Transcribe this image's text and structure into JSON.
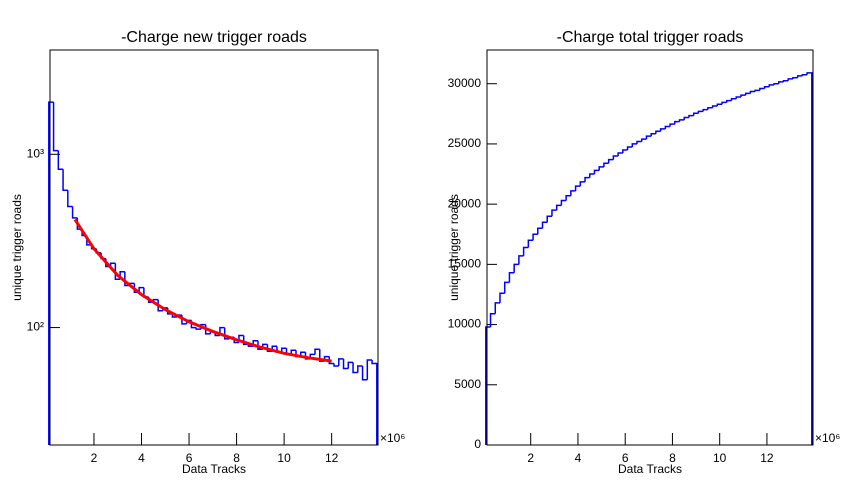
{
  "chart_data": [
    {
      "type": "histogram",
      "title": "-Charge new trigger roads",
      "x_label": "Data Tracks",
      "y_label": "unique trigger roads",
      "x_multiplier": "×10⁶",
      "color": "#0000ff",
      "log_y": true,
      "xlim": [
        0.15,
        13.95
      ],
      "ylim": [
        21,
        4000
      ],
      "xticks": [
        2,
        4,
        6,
        8,
        10,
        12
      ],
      "yticks": [
        {
          "value": 100,
          "label": "10²"
        },
        {
          "value": 1000,
          "label": "10³"
        }
      ],
      "bins": [
        0.1,
        0.3,
        0.5,
        0.7,
        0.9,
        1.1,
        1.3,
        1.5,
        1.7,
        1.9,
        2.1,
        2.3,
        2.5,
        2.7,
        2.9,
        3.1,
        3.3,
        3.5,
        3.7,
        3.9,
        4.1,
        4.3,
        4.5,
        4.7,
        4.9,
        5.1,
        5.3,
        5.5,
        5.7,
        5.9,
        6.1,
        6.3,
        6.5,
        6.7,
        6.9,
        7.1,
        7.3,
        7.5,
        7.7,
        7.9,
        8.1,
        8.3,
        8.5,
        8.7,
        8.9,
        9.1,
        9.3,
        9.5,
        9.7,
        9.9,
        10.1,
        10.3,
        10.5,
        10.7,
        10.9,
        11.1,
        11.3,
        11.5,
        11.7,
        11.9,
        12.1,
        12.3,
        12.5,
        12.7,
        12.9,
        13.1,
        13.3,
        13.5,
        13.7,
        13.9
      ],
      "counts": [
        2000,
        1050,
        820,
        620,
        500,
        430,
        370,
        340,
        300,
        285,
        270,
        250,
        225,
        235,
        190,
        210,
        175,
        180,
        160,
        170,
        150,
        140,
        145,
        125,
        130,
        120,
        115,
        118,
        105,
        110,
        100,
        98,
        104,
        92,
        95,
        90,
        100,
        86,
        88,
        82,
        90,
        80,
        78,
        84,
        75,
        80,
        73,
        78,
        72,
        76,
        70,
        74,
        68,
        72,
        66,
        70,
        75,
        64,
        68,
        62,
        60,
        66,
        58,
        63,
        55,
        60,
        50,
        65,
        62
      ],
      "fit": {
        "color": "#ff0000",
        "x": [
          1.2,
          2,
          3,
          4,
          5,
          6,
          7,
          8,
          9,
          10,
          11,
          12
        ],
        "values": [
          420,
          285,
          200,
          155,
          127,
          108,
          95,
          85,
          77,
          71,
          67,
          64
        ]
      }
    },
    {
      "type": "histogram",
      "title": "-Charge total trigger roads",
      "x_label": "Data Tracks",
      "y_label": "unique trigger roads",
      "x_multiplier": "×10⁶",
      "color": "#0000ff",
      "log_y": false,
      "xlim": [
        0.15,
        13.95
      ],
      "ylim": [
        0,
        32800
      ],
      "xticks": [
        2,
        4,
        6,
        8,
        10,
        12
      ],
      "yticks": [
        0,
        5000,
        10000,
        15000,
        20000,
        25000,
        30000
      ],
      "bins": [
        0.1,
        0.3,
        0.5,
        0.7,
        0.9,
        1.1,
        1.3,
        1.5,
        1.7,
        1.9,
        2.1,
        2.3,
        2.5,
        2.7,
        2.9,
        3.1,
        3.3,
        3.5,
        3.7,
        3.9,
        4.1,
        4.3,
        4.5,
        4.7,
        4.9,
        5.1,
        5.3,
        5.5,
        5.7,
        5.9,
        6.1,
        6.3,
        6.5,
        6.7,
        6.9,
        7.1,
        7.3,
        7.5,
        7.7,
        7.9,
        8.1,
        8.3,
        8.5,
        8.7,
        8.9,
        9.1,
        9.3,
        9.5,
        9.7,
        9.9,
        10.1,
        10.3,
        10.5,
        10.7,
        10.9,
        11.1,
        11.3,
        11.5,
        11.7,
        11.9,
        12.1,
        12.3,
        12.5,
        12.7,
        12.9,
        13.1,
        13.3,
        13.5,
        13.7,
        13.9
      ],
      "counts": [
        9800,
        10900,
        11800,
        12600,
        13500,
        14300,
        15000,
        15700,
        16400,
        17000,
        17500,
        18000,
        18500,
        19000,
        19500,
        19900,
        20300,
        20700,
        21100,
        21500,
        21850,
        22200,
        22500,
        22800,
        23100,
        23400,
        23700,
        24000,
        24250,
        24500,
        24750,
        25000,
        25200,
        25400,
        25650,
        25850,
        26050,
        26250,
        26450,
        26650,
        26850,
        27000,
        27200,
        27350,
        27550,
        27700,
        27850,
        28000,
        28150,
        28300,
        28450,
        28600,
        28750,
        28900,
        29050,
        29200,
        29350,
        29450,
        29600,
        29750,
        29900,
        30000,
        30150,
        30250,
        30400,
        30500,
        30650,
        30750,
        30900
      ]
    }
  ]
}
